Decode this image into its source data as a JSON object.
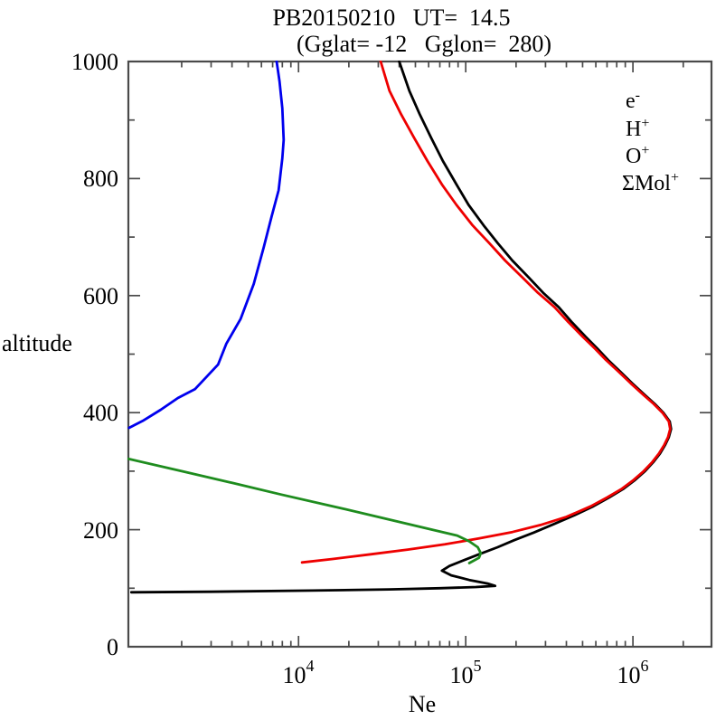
{
  "title": {
    "line1": "PB20150210   UT=  14.5",
    "line2": "(Gglat= -12   Gglon=  280)"
  },
  "axes": {
    "y": {
      "label": "altitude",
      "tick_labels": [
        "1000",
        "800",
        "600",
        "400",
        "200",
        "0"
      ],
      "major_ticks": [
        200,
        400,
        600,
        800,
        1000
      ],
      "minor_ticks": [
        100,
        300,
        500,
        700,
        900
      ]
    },
    "x": {
      "label": "Ne",
      "scale": "log",
      "tick_labels": [
        {
          "base": "10",
          "sup": "4"
        },
        {
          "base": "10",
          "sup": "5"
        },
        {
          "base": "10",
          "sup": "6"
        }
      ]
    }
  },
  "legend": {
    "position": "upper-right-inside",
    "items": [
      {
        "base": "e",
        "sup": "-",
        "color": "#000000"
      },
      {
        "base": "H",
        "sup": "+",
        "color": "#0000ee"
      },
      {
        "base": "O",
        "sup": "+",
        "color": "#ee0000"
      },
      {
        "base": "ΣMol",
        "sup": "+",
        "color": "#1e8c1e"
      }
    ]
  },
  "chart_data": {
    "type": "line",
    "title": "PB20150210  UT= 14.5",
    "subtitle": "(Gglat= -12  Gglon= 280)",
    "xlabel": "Ne",
    "ylabel": "altitude",
    "xscale": "log",
    "xlim": [
      960,
      2950000
    ],
    "ylim": [
      0,
      1000
    ],
    "grid": false,
    "series": [
      {
        "id": "electrons",
        "name": "e-",
        "color": "#000000",
        "points_format": [
          "altitude_km",
          "density_cm-3"
        ],
        "points": [
          [
            93,
            1000
          ],
          [
            94,
            3000
          ],
          [
            96,
            12000
          ],
          [
            98,
            35000
          ],
          [
            100,
            70000
          ],
          [
            102,
            115000
          ],
          [
            104,
            150000
          ],
          [
            108,
            135000
          ],
          [
            114,
            105000
          ],
          [
            122,
            82000
          ],
          [
            130,
            72000
          ],
          [
            138,
            80000
          ],
          [
            148,
            98000
          ],
          [
            158,
            120000
          ],
          [
            170,
            155000
          ],
          [
            182,
            195000
          ],
          [
            195,
            255000
          ],
          [
            210,
            340000
          ],
          [
            225,
            450000
          ],
          [
            240,
            580000
          ],
          [
            255,
            720000
          ],
          [
            270,
            880000
          ],
          [
            285,
            1030000
          ],
          [
            300,
            1180000
          ],
          [
            315,
            1320000
          ],
          [
            330,
            1450000
          ],
          [
            345,
            1560000
          ],
          [
            358,
            1640000
          ],
          [
            372,
            1690000
          ],
          [
            385,
            1660000
          ],
          [
            400,
            1520000
          ],
          [
            415,
            1350000
          ],
          [
            430,
            1180000
          ],
          [
            450,
            990000
          ],
          [
            470,
            840000
          ],
          [
            490,
            710000
          ],
          [
            510,
            610000
          ],
          [
            530,
            520000
          ],
          [
            555,
            430000
          ],
          [
            580,
            360000
          ],
          [
            605,
            290000
          ],
          [
            630,
            240000
          ],
          [
            660,
            190000
          ],
          [
            690,
            155000
          ],
          [
            720,
            128000
          ],
          [
            755,
            104000
          ],
          [
            790,
            88000
          ],
          [
            830,
            73000
          ],
          [
            870,
            62000
          ],
          [
            910,
            53000
          ],
          [
            950,
            46000
          ],
          [
            1000,
            40000
          ]
        ]
      },
      {
        "id": "hydrogen-ions",
        "name": "H+",
        "color": "#0000ee",
        "points_format": [
          "altitude_km",
          "density_cm-3"
        ],
        "points": [
          [
            374,
            970
          ],
          [
            386,
            1170
          ],
          [
            405,
            1500
          ],
          [
            425,
            1900
          ],
          [
            440,
            2400
          ],
          [
            482,
            3300
          ],
          [
            518,
            3700
          ],
          [
            560,
            4500
          ],
          [
            620,
            5400
          ],
          [
            683,
            6200
          ],
          [
            735,
            6900
          ],
          [
            780,
            7600
          ],
          [
            835,
            8000
          ],
          [
            866,
            8150
          ],
          [
            920,
            8000
          ],
          [
            966,
            7700
          ],
          [
            1000,
            7400
          ]
        ]
      },
      {
        "id": "oxygen-ions",
        "name": "O+",
        "color": "#ee0000",
        "points_format": [
          "altitude_km",
          "density_cm-3"
        ],
        "points": [
          [
            144,
            10500
          ],
          [
            150,
            16000
          ],
          [
            158,
            27000
          ],
          [
            166,
            45000
          ],
          [
            175,
            75000
          ],
          [
            185,
            120000
          ],
          [
            196,
            190000
          ],
          [
            208,
            280000
          ],
          [
            222,
            400000
          ],
          [
            240,
            560000
          ],
          [
            255,
            700000
          ],
          [
            270,
            860000
          ],
          [
            285,
            1010000
          ],
          [
            300,
            1160000
          ],
          [
            315,
            1300000
          ],
          [
            330,
            1430000
          ],
          [
            345,
            1540000
          ],
          [
            358,
            1620000
          ],
          [
            372,
            1670000
          ],
          [
            385,
            1640000
          ],
          [
            400,
            1500000
          ],
          [
            415,
            1330000
          ],
          [
            430,
            1160000
          ],
          [
            450,
            970000
          ],
          [
            470,
            820000
          ],
          [
            490,
            690000
          ],
          [
            510,
            590000
          ],
          [
            530,
            500000
          ],
          [
            555,
            410000
          ],
          [
            580,
            340000
          ],
          [
            605,
            270000
          ],
          [
            630,
            220000
          ],
          [
            660,
            172000
          ],
          [
            690,
            138000
          ],
          [
            720,
            110000
          ],
          [
            755,
            88000
          ],
          [
            790,
            72000
          ],
          [
            830,
            59000
          ],
          [
            870,
            49000
          ],
          [
            910,
            41000
          ],
          [
            950,
            35000
          ],
          [
            1000,
            31000
          ]
        ]
      },
      {
        "id": "molecular-ions",
        "name": "ΣMol+",
        "color": "#1e8c1e",
        "points_format": [
          "altitude_km",
          "density_cm-3"
        ],
        "points": [
          [
            321,
            960
          ],
          [
            300,
            2000
          ],
          [
            280,
            4000
          ],
          [
            260,
            7900
          ],
          [
            240,
            16000
          ],
          [
            220,
            32000
          ],
          [
            200,
            63000
          ],
          [
            190,
            89000
          ],
          [
            180,
            105000
          ],
          [
            170,
            118000
          ],
          [
            160,
            123000
          ],
          [
            152,
            120000
          ],
          [
            146,
            110000
          ],
          [
            143,
            105000
          ]
        ]
      }
    ]
  }
}
